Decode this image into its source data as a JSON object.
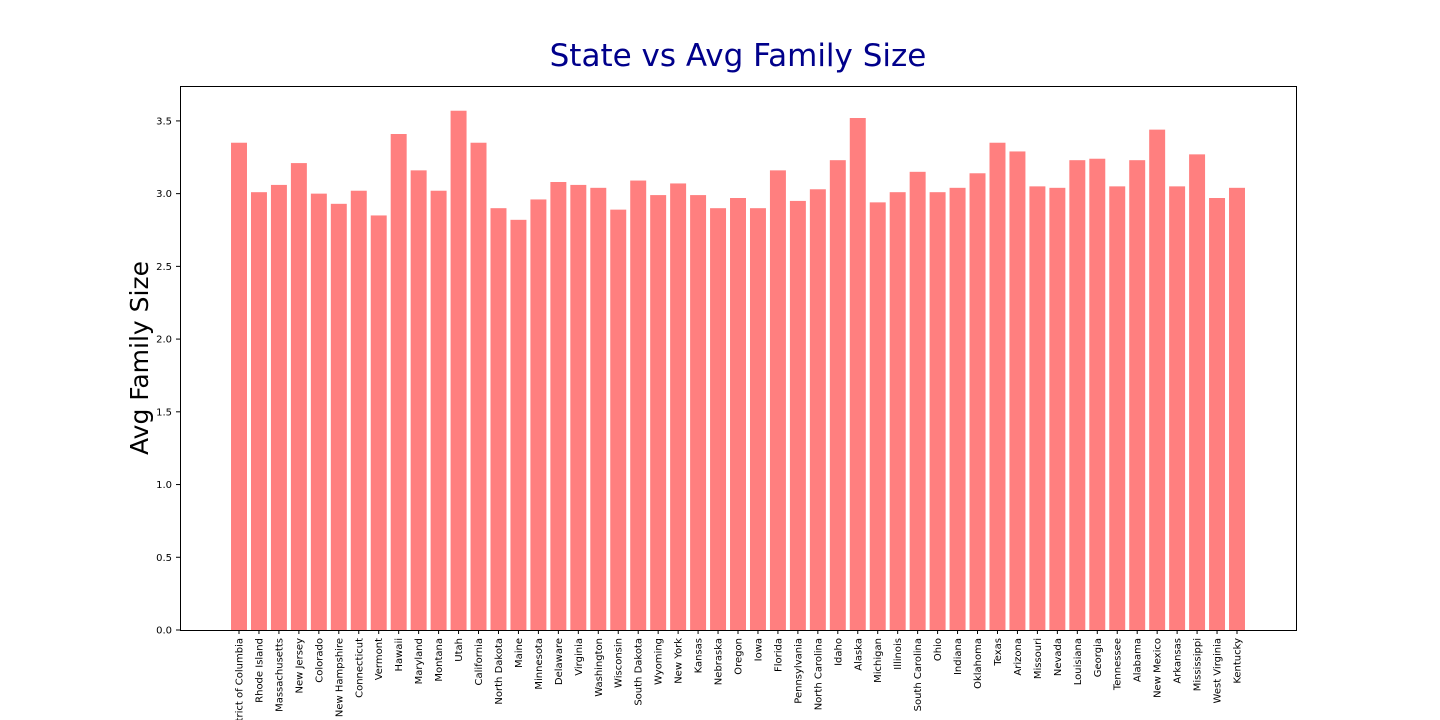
{
  "chart_data": {
    "type": "bar",
    "title": "State vs Avg Family Size",
    "xlabel": "",
    "ylabel": "Avg Family Size",
    "ylim": [
      0,
      3.74
    ],
    "yticks": [
      "0.0",
      "0.5",
      "1.0",
      "1.5",
      "2.0",
      "2.5",
      "3.0",
      "3.5"
    ],
    "legend": "none",
    "grid": false,
    "colors": {
      "bar": "#ff7f7f",
      "title": "#00008b",
      "axis": "#000000"
    },
    "categories": [
      "District of Columbia",
      "Rhode Island",
      "Massachusetts",
      "New Jersey",
      "Colorado",
      "New Hampshire",
      "Connecticut",
      "Vermont",
      "Hawaii",
      "Maryland",
      "Montana",
      "Utah",
      "California",
      "North Dakota",
      "Maine",
      "Minnesota",
      "Delaware",
      "Virginia",
      "Washington",
      "Wisconsin",
      "South Dakota",
      "Wyoming",
      "New York",
      "Kansas",
      "Nebraska",
      "Oregon",
      "Iowa",
      "Florida",
      "Pennsylvania",
      "North Carolina",
      "Idaho",
      "Alaska",
      "Michigan",
      "Illinois",
      "South Carolina",
      "Ohio",
      "Indiana",
      "Oklahoma",
      "Texas",
      "Arizona",
      "Missouri",
      "Nevada",
      "Louisiana",
      "Georgia",
      "Tennessee",
      "Alabama",
      "New Mexico",
      "Arkansas",
      "Mississippi",
      "West Virginia",
      "Kentucky"
    ],
    "values": [
      3.35,
      3.01,
      3.06,
      3.21,
      3.0,
      2.93,
      3.02,
      2.85,
      3.41,
      3.16,
      3.02,
      3.57,
      3.35,
      2.9,
      2.82,
      2.96,
      3.08,
      3.06,
      3.04,
      2.89,
      3.09,
      2.99,
      3.07,
      2.99,
      2.9,
      2.97,
      2.9,
      3.16,
      2.95,
      3.03,
      3.23,
      3.52,
      2.94,
      3.01,
      3.15,
      3.01,
      3.04,
      3.14,
      3.35,
      3.29,
      3.05,
      3.04,
      3.23,
      3.24,
      3.05,
      3.23,
      3.44,
      3.05,
      3.27,
      2.97,
      3.04
    ]
  }
}
